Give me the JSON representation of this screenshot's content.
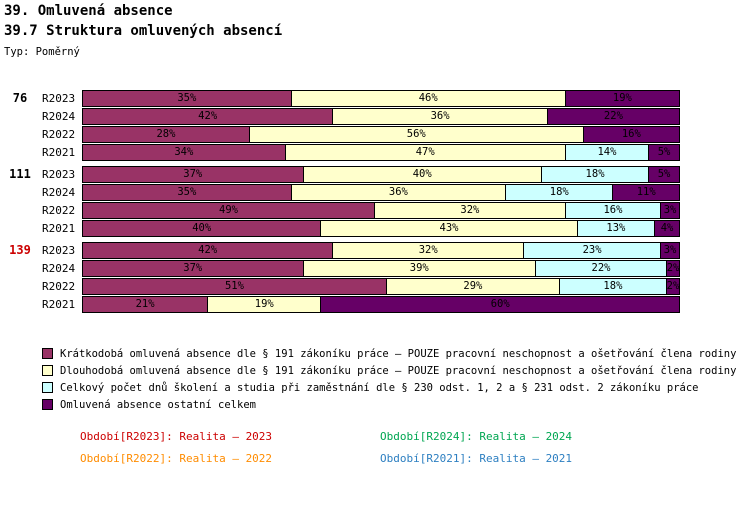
{
  "header": {
    "title": "39. Omluvená absence",
    "subtitle": "39.7 Struktura omluvených absencí",
    "type_label": "Typ: Poměrný"
  },
  "chart_data": {
    "type": "bar",
    "orientation": "horizontal",
    "stacked": true,
    "unit": "%",
    "xlim": [
      0,
      100
    ],
    "grid": false,
    "series_names": [
      "Krátkodobá omluvená absence dle § 191 zákoníku práce – POUZE pracovní neschopnost a ošetřování člena rodiny",
      "Dlouhodobá omluvená absence dle § 191 zákoníku práce – POUZE pracovní neschopnost a ošetřování člena rodiny",
      "Celkový počet dnů školení a studia při zaměstnání dle § 230 odst. 1, 2 a § 231 odst. 2 zákoníku práce",
      "Omluvená absence ostatní celkem"
    ],
    "colors": [
      "#993366",
      "#FFFFCC",
      "#CCFFFF",
      "#660066"
    ],
    "groups": [
      {
        "label": "76",
        "label_color": "#000000",
        "rows": [
          {
            "period": "R2023",
            "values": [
              35,
              46,
              0,
              19
            ]
          },
          {
            "period": "R2024",
            "values": [
              42,
              36,
              0,
              22
            ]
          },
          {
            "period": "R2022",
            "values": [
              28,
              56,
              0,
              16
            ]
          },
          {
            "period": "R2021",
            "values": [
              34,
              47,
              14,
              5
            ]
          }
        ]
      },
      {
        "label": "111",
        "label_color": "#000000",
        "rows": [
          {
            "period": "R2023",
            "values": [
              37,
              40,
              18,
              5
            ]
          },
          {
            "period": "R2024",
            "values": [
              35,
              36,
              18,
              11
            ]
          },
          {
            "period": "R2022",
            "values": [
              49,
              32,
              16,
              3
            ]
          },
          {
            "period": "R2021",
            "values": [
              40,
              43,
              13,
              4
            ]
          }
        ]
      },
      {
        "label": "139",
        "label_color": "#CC0000",
        "rows": [
          {
            "period": "R2023",
            "values": [
              42,
              32,
              23,
              3
            ]
          },
          {
            "period": "R2024",
            "values": [
              37,
              39,
              22,
              2
            ]
          },
          {
            "period": "R2022",
            "values": [
              51,
              29,
              18,
              2
            ]
          },
          {
            "period": "R2021",
            "values": [
              21,
              19,
              0,
              60
            ]
          }
        ]
      }
    ]
  },
  "legend": {
    "items": [
      {
        "label": "Krátkodobá omluvená absence dle § 191 zákoníku práce – POUZE pracovní neschopnost a ošetřování člena rodiny",
        "color": "#993366"
      },
      {
        "label": "Dlouhodobá omluvená absence dle § 191 zákoníku práce – POUZE pracovní neschopnost a ošetřování člena rodiny",
        "color": "#FFFFCC"
      },
      {
        "label": "Celkový počet dnů školení a studia při zaměstnání dle § 230 odst. 1, 2 a § 231 odst. 2 zákoníku práce",
        "color": "#CCFFFF"
      },
      {
        "label": "Omluvená absence ostatní celkem",
        "color": "#660066"
      }
    ]
  },
  "periods": [
    {
      "label": "Období[R2023]:",
      "value": "Realita – 2023",
      "color": "#CC0000"
    },
    {
      "label": "Období[R2024]:",
      "value": "Realita – 2024",
      "color": "#00A651"
    },
    {
      "label": "Období[R2022]:",
      "value": "Realita – 2022",
      "color": "#FF8C00"
    },
    {
      "label": "Období[R2021]:",
      "value": "Realita – 2021",
      "color": "#2D7FC1"
    }
  ]
}
